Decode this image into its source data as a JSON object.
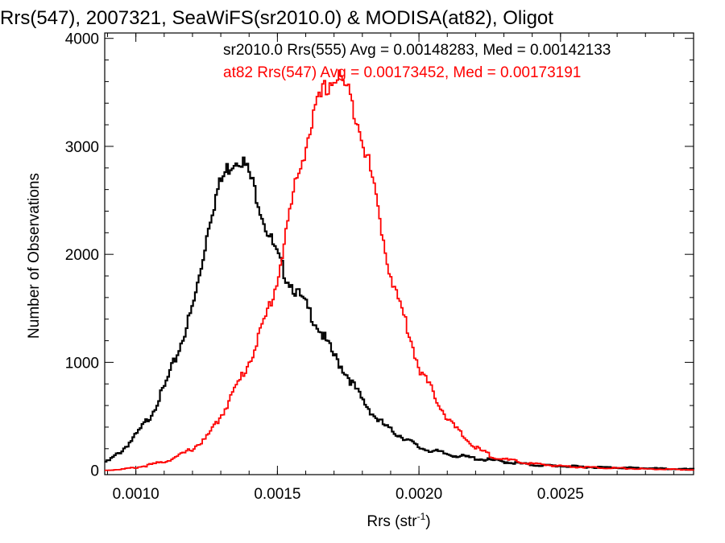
{
  "chart_data": {
    "type": "line",
    "title": "Rrs(547), 2007321, SeaWiFS(sr2010.0) & MODISA(at82), Oligot",
    "xlabel": "Rrs (str",
    "xlabel_sup": "-1",
    "xlabel_close": ")",
    "ylabel": "Number of Observations",
    "xlim": [
      0.00089,
      0.00297
    ],
    "ylim": [
      -40,
      4050
    ],
    "x_ticks": [
      0.001,
      0.0015,
      0.002,
      0.0025
    ],
    "x_tick_labels": [
      "0.0010",
      "0.0015",
      "0.0020",
      "0.0025"
    ],
    "y_ticks": [
      0,
      1000,
      2000,
      3000,
      4000
    ],
    "y_tick_labels": [
      "0",
      "1000",
      "2000",
      "3000",
      "4000"
    ],
    "grid": false,
    "legend_position": "top-right",
    "series": [
      {
        "name": "sr2010.0 Rrs(555) Avg = 0.00148283, Med = 0.00142133",
        "color": "#000000",
        "x": [
          0.0009,
          0.00095,
          0.001,
          0.00105,
          0.0011,
          0.00115,
          0.0012,
          0.00123,
          0.00126,
          0.00129,
          0.00132,
          0.00135,
          0.00137,
          0.0014,
          0.00143,
          0.00146,
          0.0015,
          0.00153,
          0.00156,
          0.0016,
          0.00165,
          0.0017,
          0.00175,
          0.0018,
          0.00185,
          0.0019,
          0.00195,
          0.002,
          0.0021,
          0.0022,
          0.0023,
          0.0024,
          0.0025,
          0.0026,
          0.0027,
          0.0028,
          0.0029,
          0.00296
        ],
        "y": [
          80,
          180,
          320,
          500,
          760,
          1100,
          1500,
          1860,
          2320,
          2600,
          2780,
          2880,
          2900,
          2750,
          2520,
          2250,
          1980,
          1800,
          1680,
          1530,
          1300,
          1060,
          870,
          650,
          480,
          370,
          300,
          210,
          150,
          110,
          80,
          50,
          40,
          30,
          25,
          20,
          12,
          10
        ]
      },
      {
        "name": "at82 Rrs(547) Avg = 0.00173452, Med = 0.00173191",
        "color": "#ff0000",
        "x": [
          0.0009,
          0.00095,
          0.001,
          0.00105,
          0.0011,
          0.00115,
          0.0012,
          0.00125,
          0.0013,
          0.00135,
          0.0014,
          0.00145,
          0.0015,
          0.00153,
          0.00156,
          0.0016,
          0.00163,
          0.00166,
          0.00169,
          0.00172,
          0.00175,
          0.00178,
          0.00181,
          0.00184,
          0.00187,
          0.0019,
          0.00195,
          0.002,
          0.00205,
          0.0021,
          0.00215,
          0.0022,
          0.00225,
          0.0023,
          0.0024,
          0.0025,
          0.0026,
          0.0027,
          0.0028,
          0.0029,
          0.00296
        ],
        "y": [
          0,
          10,
          25,
          50,
          80,
          130,
          200,
          300,
          500,
          750,
          1000,
          1350,
          1750,
          2200,
          2600,
          3000,
          3300,
          3500,
          3600,
          3650,
          3500,
          3280,
          2980,
          2650,
          2200,
          1800,
          1400,
          950,
          720,
          480,
          330,
          210,
          140,
          100,
          60,
          40,
          28,
          20,
          12,
          8,
          5
        ]
      }
    ]
  }
}
